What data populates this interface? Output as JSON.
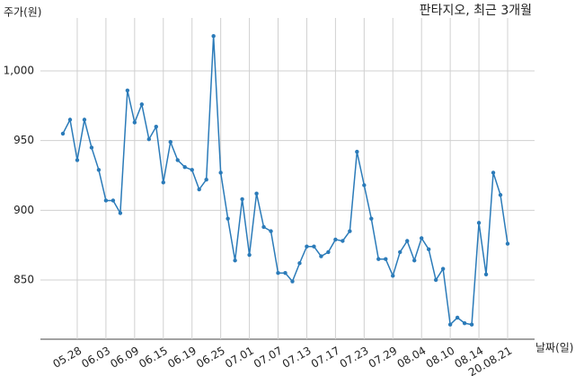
{
  "chart_data": {
    "type": "line",
    "title": "판타지오, 최근 3개월",
    "y_label": "주가(원)",
    "x_label": "날짜(일)",
    "categories": [
      null,
      null,
      "05.28",
      null,
      null,
      null,
      "06.03",
      null,
      null,
      null,
      "06.09",
      null,
      null,
      null,
      "06.15",
      null,
      null,
      null,
      "06.19",
      null,
      null,
      null,
      "06.25",
      null,
      null,
      null,
      "07.01",
      null,
      null,
      null,
      "07.07",
      null,
      null,
      null,
      "07.13",
      null,
      null,
      null,
      "07.17",
      null,
      null,
      null,
      "07.23",
      null,
      null,
      null,
      "07.29",
      null,
      null,
      null,
      "08.04",
      null,
      null,
      null,
      "08.10",
      null,
      null,
      null,
      "08.14",
      null,
      null,
      null,
      "20.08.21"
    ],
    "series": [
      {
        "name": "주가",
        "color": "#2b7bb9",
        "values": [
          955,
          965,
          936,
          965,
          945,
          929,
          907,
          907,
          898,
          986,
          963,
          976,
          951,
          960,
          920,
          949,
          936,
          931,
          929,
          915,
          922,
          1025,
          927,
          894,
          864,
          908,
          868,
          912,
          888,
          885,
          855,
          855,
          849,
          862,
          874,
          874,
          867,
          870,
          879,
          878,
          885,
          942,
          918,
          894,
          865,
          865,
          853,
          870,
          878,
          864,
          880,
          872,
          850,
          858,
          818,
          823,
          819,
          818,
          891,
          854,
          927,
          911,
          876
        ]
      }
    ],
    "ylim": [
      807.5,
      1038
    ],
    "yticks": [
      850,
      900,
      950,
      {
        "value": 1000,
        "label": "1,000"
      }
    ],
    "grid": true
  }
}
